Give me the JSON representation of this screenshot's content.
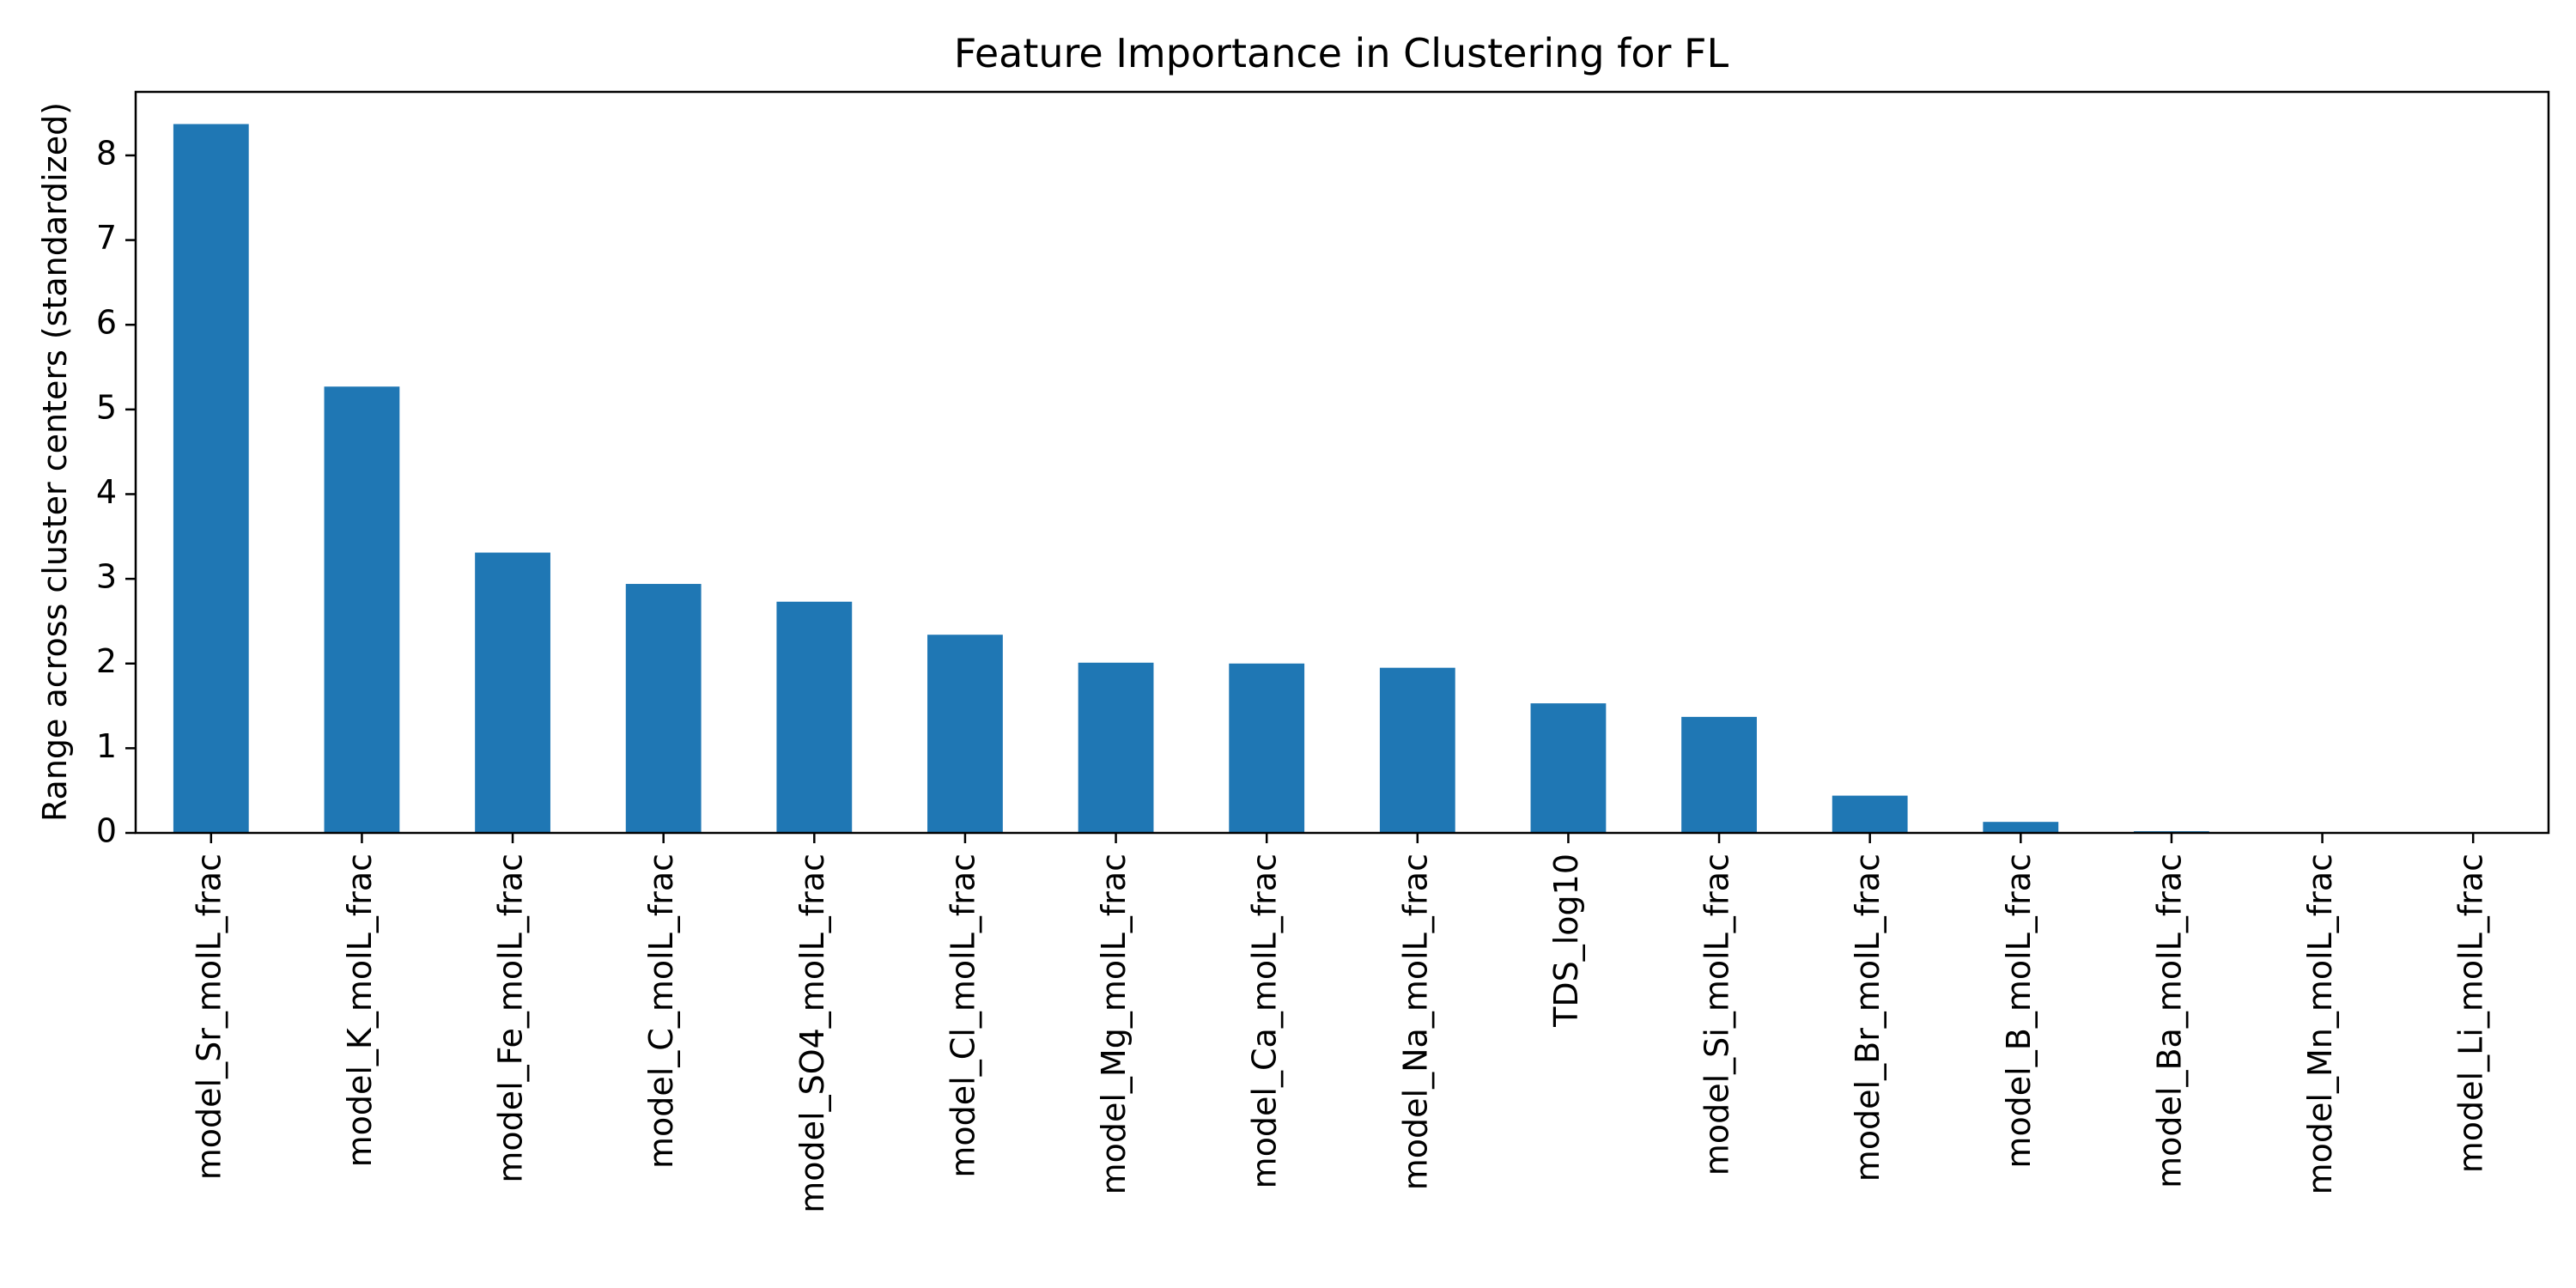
{
  "chart_data": {
    "type": "bar",
    "title": "Feature Importance in Clustering for FL",
    "xlabel": "",
    "ylabel": "Range across cluster centers (standardized)",
    "categories": [
      "model_Sr_molL_frac",
      "model_K_molL_frac",
      "model_Fe_molL_frac",
      "model_C_molL_frac",
      "model_SO4_molL_frac",
      "model_Cl_molL_frac",
      "model_Mg_molL_frac",
      "model_Ca_molL_frac",
      "model_Na_molL_frac",
      "TDS_log10",
      "model_Si_molL_frac",
      "model_Br_molL_frac",
      "model_B_molL_frac",
      "model_Ba_molL_frac",
      "model_Mn_molL_frac",
      "model_Li_molL_frac"
    ],
    "values": [
      8.37,
      5.27,
      3.31,
      2.94,
      2.73,
      2.34,
      2.01,
      2.0,
      1.95,
      1.53,
      1.37,
      0.44,
      0.13,
      0.02,
      0.0,
      0.0
    ],
    "ylim": [
      0,
      8.75
    ],
    "yticks": [
      0,
      1,
      2,
      3,
      4,
      5,
      6,
      7,
      8
    ],
    "bar_color": "#1f77b4",
    "grid": false,
    "legend": "none"
  }
}
